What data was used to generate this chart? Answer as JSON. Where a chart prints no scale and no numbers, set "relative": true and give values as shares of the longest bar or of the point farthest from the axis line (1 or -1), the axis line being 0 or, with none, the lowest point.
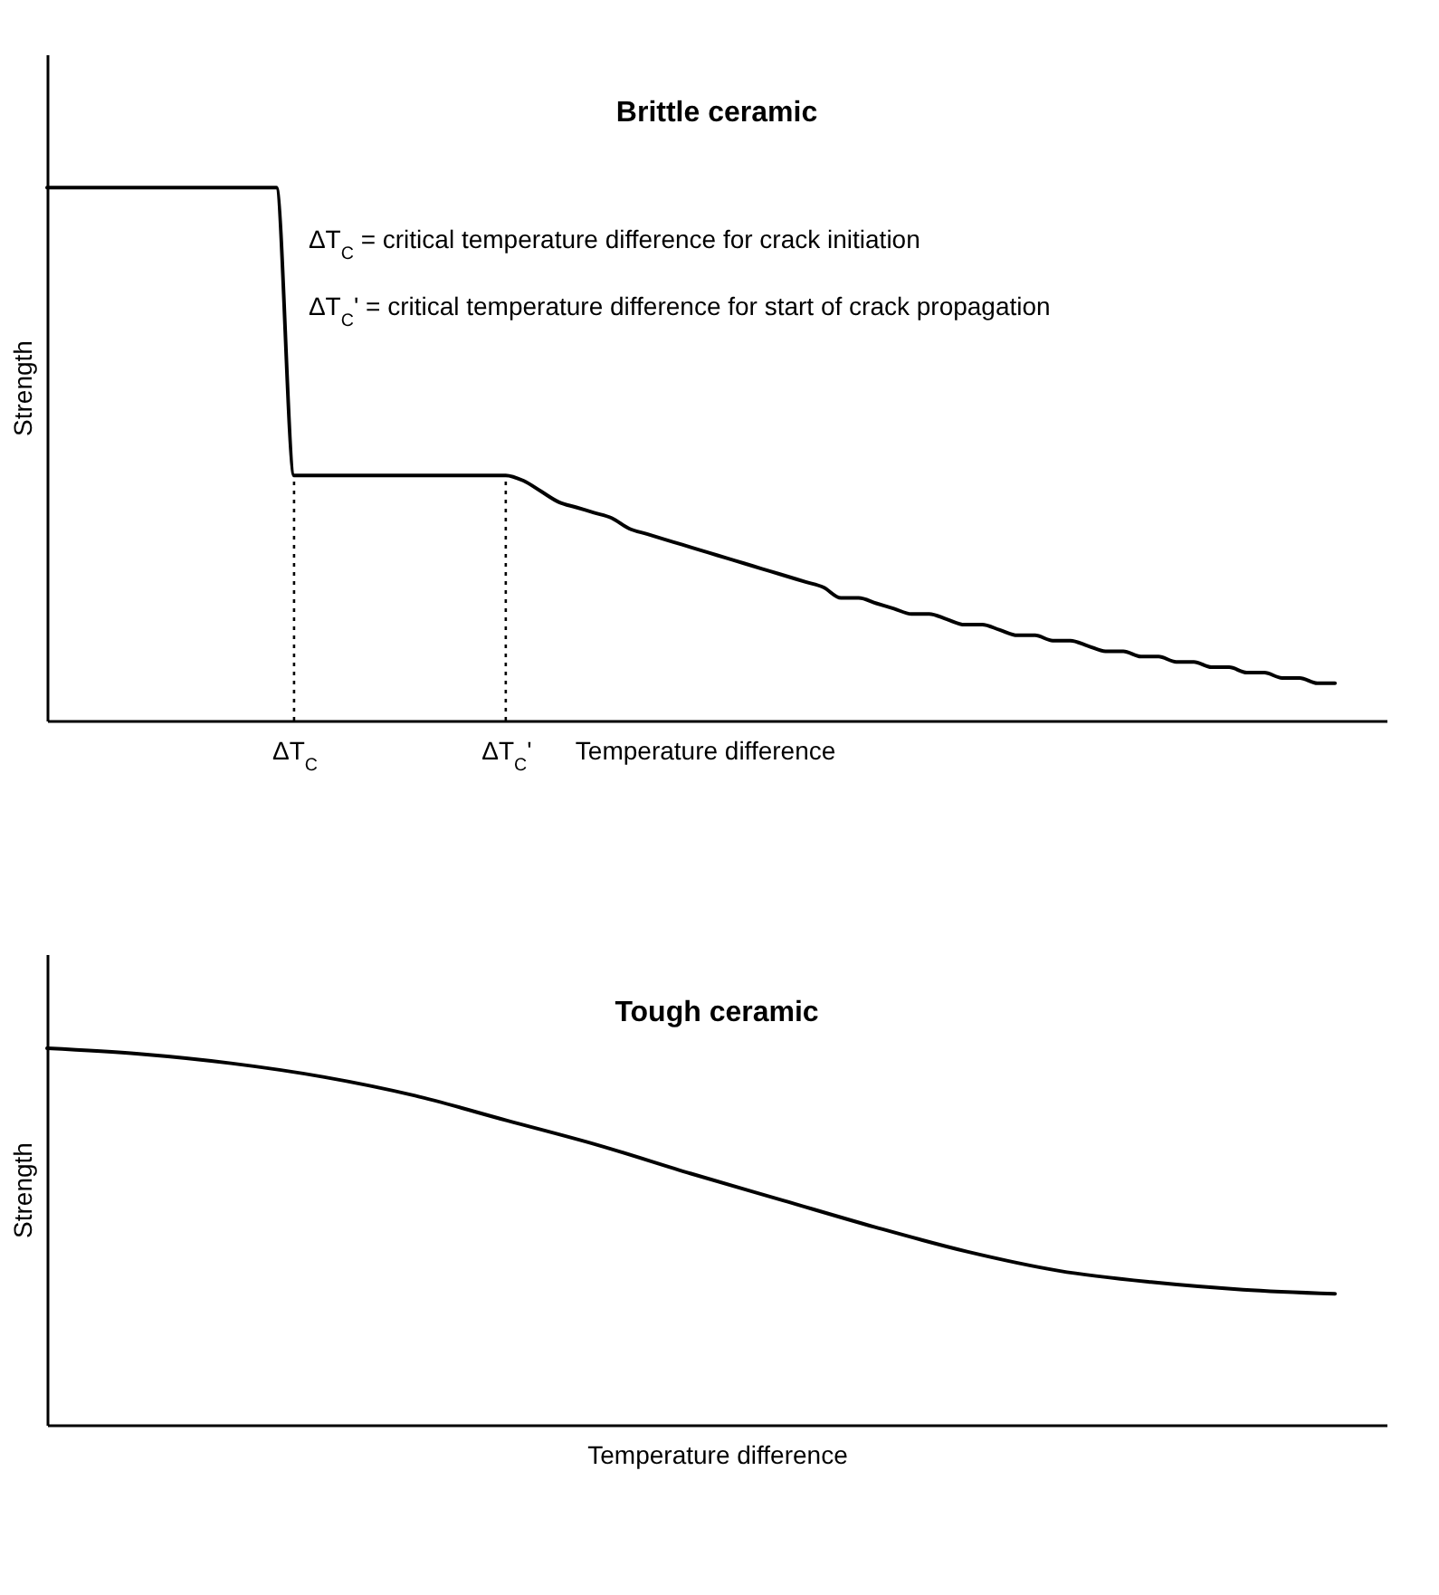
{
  "chart_data": [
    {
      "type": "line",
      "title": "Brittle ceramic",
      "xlabel": "Temperature difference",
      "ylabel": "Strength",
      "relative": true,
      "categories": [
        null,
        null,
        null,
        null,
        null,
        null,
        null,
        null,
        null,
        null,
        null,
        null,
        null,
        null,
        "ΔT$_{C}$",
        null,
        null,
        null,
        null,
        null,
        null,
        null,
        null,
        null,
        null,
        null,
        "ΔT$_{C}$'",
        null,
        null,
        null,
        null,
        null,
        null,
        null,
        null,
        null,
        null,
        null,
        null,
        null,
        null,
        null,
        null,
        null,
        null,
        null,
        null,
        null,
        null,
        null,
        null,
        null,
        null,
        null,
        null,
        null,
        null,
        null,
        null,
        null,
        null,
        null,
        null,
        null,
        null,
        null,
        null,
        null,
        null,
        null,
        null,
        null,
        null,
        null
      ],
      "series": [
        {
          "color": "#000000",
          "values": [
            1,
            1,
            1,
            1,
            1,
            1,
            1,
            1,
            1,
            1,
            1,
            1,
            1,
            1,
            0.46,
            0.46,
            0.46,
            0.46,
            0.46,
            0.46,
            0.46,
            0.46,
            0.46,
            0.46,
            0.46,
            0.46,
            0.46,
            0.45,
            0.43,
            0.41,
            0.4,
            0.39,
            0.38,
            0.36,
            0.35,
            0.34,
            0.33,
            0.32,
            0.31,
            0.3,
            0.29,
            0.28,
            0.27,
            0.26,
            0.25,
            0.23,
            0.23,
            0.22,
            0.21,
            0.2,
            0.2,
            0.19,
            0.18,
            0.18,
            0.17,
            0.16,
            0.16,
            0.15,
            0.15,
            0.14,
            0.13,
            0.13,
            0.12,
            0.12,
            0.11,
            0.11,
            0.1,
            0.1,
            0.09,
            0.09,
            0.08,
            0.08,
            0.07,
            0.07
          ]
        }
      ],
      "ref_lines": [
        {
          "axis": "x",
          "value": "ΔT$_{C}$",
          "line_style": "dotted"
        },
        {
          "axis": "x",
          "value": "ΔT$_{C}$'",
          "line_style": "dotted"
        }
      ],
      "annotations": [
        "ΔT$_{C}$ = critical temperature difference for crack initiation",
        "ΔT$_{C}$' = critical temperature difference for start of crack propagation"
      ]
    },
    {
      "type": "line",
      "title": "Tough ceramic",
      "xlabel": "Temperature difference",
      "ylabel": "Strength",
      "relative": true,
      "categories": [
        null,
        null,
        null,
        null,
        null,
        null,
        null,
        null,
        null,
        null,
        null,
        null,
        null,
        null,
        null
      ],
      "series": [
        {
          "color": "#000000",
          "values": [
            1,
            0.985,
            0.96,
            0.924,
            0.874,
            0.808,
            0.742,
            0.667,
            0.596,
            0.525,
            0.46,
            0.409,
            0.379,
            0.359,
            0.348
          ]
        }
      ]
    }
  ]
}
